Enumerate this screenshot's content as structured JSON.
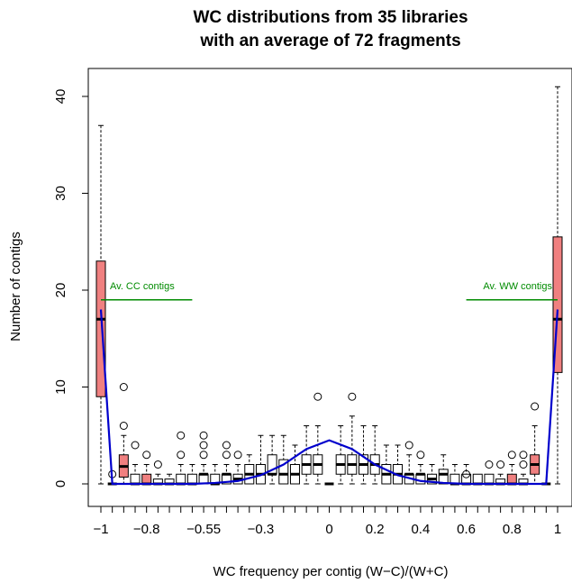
{
  "chart_data": {
    "type": "box",
    "title_line1": "WC distributions from 35 libraries",
    "title_line2": "with an average of 72 fragments",
    "xlabel": "WC frequency per contig (W−C)/(W+C)",
    "ylabel": "Number of contigs",
    "ylim": [
      0,
      40
    ],
    "xlim": [
      -1,
      1
    ],
    "y_ticks": [
      0,
      10,
      20,
      30,
      40
    ],
    "x_ticks": [
      {
        "value": -1,
        "label": "−1"
      },
      {
        "value": -0.8,
        "label": "−0.8"
      },
      {
        "value": -0.55,
        "label": "−0.55"
      },
      {
        "value": -0.3,
        "label": "−0.3"
      },
      {
        "value": 0,
        "label": "0"
      },
      {
        "value": 0.2,
        "label": "0.2"
      },
      {
        "value": 0.4,
        "label": "0.4"
      },
      {
        "value": 0.6,
        "label": "0.6"
      },
      {
        "value": 0.8,
        "label": "0.8"
      },
      {
        "value": 1,
        "label": "1"
      }
    ],
    "highlight_color": "#f08080",
    "curve_color": "#0000cc",
    "annotation_color": "#008b00",
    "boxes": [
      {
        "x": -1.0,
        "min": 0,
        "q1": 9,
        "median": 17,
        "q3": 23,
        "max": 37,
        "hl": true
      },
      {
        "x": -0.9,
        "min": 0,
        "q1": 0.7,
        "median": 1.8,
        "q3": 3,
        "max": 5,
        "hl": true,
        "outliers": [
          6,
          10
        ]
      },
      {
        "x": -0.8,
        "min": 0,
        "q1": 0,
        "median": 0,
        "q3": 1,
        "max": 2,
        "hl": true,
        "outliers": [
          3
        ]
      },
      {
        "x": 0.0,
        "min": 0,
        "q1": 0,
        "median": 0,
        "q3": 0,
        "max": 0,
        "hl": false
      },
      {
        "x": 0.8,
        "min": 0,
        "q1": 0,
        "median": 0,
        "q3": 1,
        "max": 2,
        "hl": true,
        "outliers": [
          3
        ]
      },
      {
        "x": 0.9,
        "min": 0,
        "q1": 1,
        "median": 2,
        "q3": 3,
        "max": 6,
        "hl": true,
        "outliers": [
          8
        ]
      },
      {
        "x": 1.0,
        "min": 0,
        "q1": 11.5,
        "median": 17,
        "q3": 25.5,
        "max": 41,
        "hl": true
      }
    ],
    "mid_boxes": [
      {
        "x": -0.85,
        "min": 0,
        "q1": 0,
        "median": 0,
        "q3": 1,
        "max": 2,
        "outliers": [
          4
        ]
      },
      {
        "x": -0.75,
        "min": 0,
        "q1": 0,
        "median": 0,
        "q3": 0.5,
        "max": 1,
        "outliers": [
          2
        ]
      },
      {
        "x": -0.7,
        "min": 0,
        "q1": 0,
        "median": 0,
        "q3": 0.5,
        "max": 1
      },
      {
        "x": -0.65,
        "min": 0,
        "q1": 0,
        "median": 0,
        "q3": 1,
        "max": 2,
        "outliers": [
          3,
          5
        ]
      },
      {
        "x": -0.6,
        "min": 0,
        "q1": 0,
        "median": 0,
        "q3": 1,
        "max": 2
      },
      {
        "x": -0.55,
        "min": 0,
        "q1": 0,
        "median": 1,
        "q3": 1,
        "max": 2,
        "outliers": [
          3,
          4,
          5
        ]
      },
      {
        "x": -0.5,
        "min": 0,
        "q1": 0,
        "median": 0,
        "q3": 1,
        "max": 2
      },
      {
        "x": -0.45,
        "min": 0,
        "q1": 0,
        "median": 1,
        "q3": 1,
        "max": 2,
        "outliers": [
          3,
          4
        ]
      },
      {
        "x": -0.4,
        "min": 0,
        "q1": 0,
        "median": 0.5,
        "q3": 1,
        "max": 2,
        "outliers": [
          3
        ]
      },
      {
        "x": -0.35,
        "min": 0,
        "q1": 0,
        "median": 1,
        "q3": 2,
        "max": 3
      },
      {
        "x": -0.3,
        "min": 0,
        "q1": 0,
        "median": 1,
        "q3": 2,
        "max": 5
      },
      {
        "x": -0.25,
        "min": 0,
        "q1": 1,
        "median": 1,
        "q3": 3,
        "max": 5
      },
      {
        "x": -0.2,
        "min": 0,
        "q1": 0,
        "median": 1,
        "q3": 2.5,
        "max": 5
      },
      {
        "x": -0.15,
        "min": 0,
        "q1": 0,
        "median": 1,
        "q3": 2,
        "max": 4
      },
      {
        "x": -0.1,
        "min": 0,
        "q1": 1,
        "median": 2,
        "q3": 3,
        "max": 6
      },
      {
        "x": -0.05,
        "min": 0,
        "q1": 1,
        "median": 2,
        "q3": 3,
        "max": 6,
        "outliers": [
          9
        ]
      },
      {
        "x": 0.05,
        "min": 0,
        "q1": 1,
        "median": 2,
        "q3": 3,
        "max": 6
      },
      {
        "x": 0.1,
        "min": 0,
        "q1": 1,
        "median": 2,
        "q3": 3,
        "max": 7,
        "outliers": [
          9
        ]
      },
      {
        "x": 0.15,
        "min": 0,
        "q1": 1,
        "median": 2,
        "q3": 3,
        "max": 6
      },
      {
        "x": 0.2,
        "min": 0,
        "q1": 1,
        "median": 2,
        "q3": 3,
        "max": 6
      },
      {
        "x": 0.25,
        "min": 0,
        "q1": 0,
        "median": 1,
        "q3": 2,
        "max": 4
      },
      {
        "x": 0.3,
        "min": 0,
        "q1": 0,
        "median": 1,
        "q3": 2,
        "max": 4
      },
      {
        "x": 0.35,
        "min": 0,
        "q1": 0,
        "median": 1,
        "q3": 1,
        "max": 3,
        "outliers": [
          4
        ]
      },
      {
        "x": 0.4,
        "min": 0,
        "q1": 0,
        "median": 1,
        "q3": 1,
        "max": 2,
        "outliers": [
          3
        ]
      },
      {
        "x": 0.45,
        "min": 0,
        "q1": 0,
        "median": 0.5,
        "q3": 1,
        "max": 2
      },
      {
        "x": 0.5,
        "min": 0,
        "q1": 0,
        "median": 1,
        "q3": 1.5,
        "max": 3
      },
      {
        "x": 0.55,
        "min": 0,
        "q1": 0,
        "median": 0,
        "q3": 1,
        "max": 2
      },
      {
        "x": 0.6,
        "min": 0,
        "q1": 0,
        "median": 0,
        "q3": 1,
        "max": 2,
        "outliers": [
          1
        ]
      },
      {
        "x": 0.65,
        "min": 0,
        "q1": 0,
        "median": 0,
        "q3": 1,
        "max": 1
      },
      {
        "x": 0.7,
        "min": 0,
        "q1": 0,
        "median": 0,
        "q3": 1,
        "max": 1,
        "outliers": [
          2
        ]
      },
      {
        "x": 0.75,
        "min": 0,
        "q1": 0,
        "median": 0,
        "q3": 0.5,
        "max": 1,
        "outliers": [
          2
        ]
      },
      {
        "x": -0.95,
        "min": 0,
        "q1": 0,
        "median": 0,
        "q3": 0,
        "max": 0,
        "outliers": [
          1
        ]
      },
      {
        "x": 0.85,
        "min": 0,
        "q1": 0,
        "median": 0,
        "q3": 0.5,
        "max": 1,
        "outliers": [
          2,
          3
        ]
      },
      {
        "x": 0.95,
        "min": 0,
        "q1": 0,
        "median": 0,
        "q3": 0,
        "max": 0
      }
    ],
    "curve": {
      "x": [
        -1,
        -0.95,
        -0.9,
        -0.8,
        -0.7,
        -0.6,
        -0.5,
        -0.4,
        -0.3,
        -0.2,
        -0.1,
        0,
        0.1,
        0.2,
        0.3,
        0.4,
        0.5,
        0.6,
        0.7,
        0.8,
        0.9,
        0.95,
        1
      ],
      "y": [
        18,
        0,
        0,
        0,
        0,
        0,
        0.1,
        0.3,
        0.9,
        2.0,
        3.6,
        4.5,
        3.6,
        2.0,
        0.9,
        0.3,
        0.1,
        0,
        0,
        0,
        0,
        0,
        18
      ]
    },
    "annotations": [
      {
        "text": "Av. CC contigs",
        "x": -1,
        "y": 19,
        "line_x": [
          -1,
          -0.6
        ]
      },
      {
        "text": "Av. WW contigs",
        "x": 1,
        "y": 19,
        "line_x": [
          0.6,
          1
        ]
      }
    ]
  }
}
